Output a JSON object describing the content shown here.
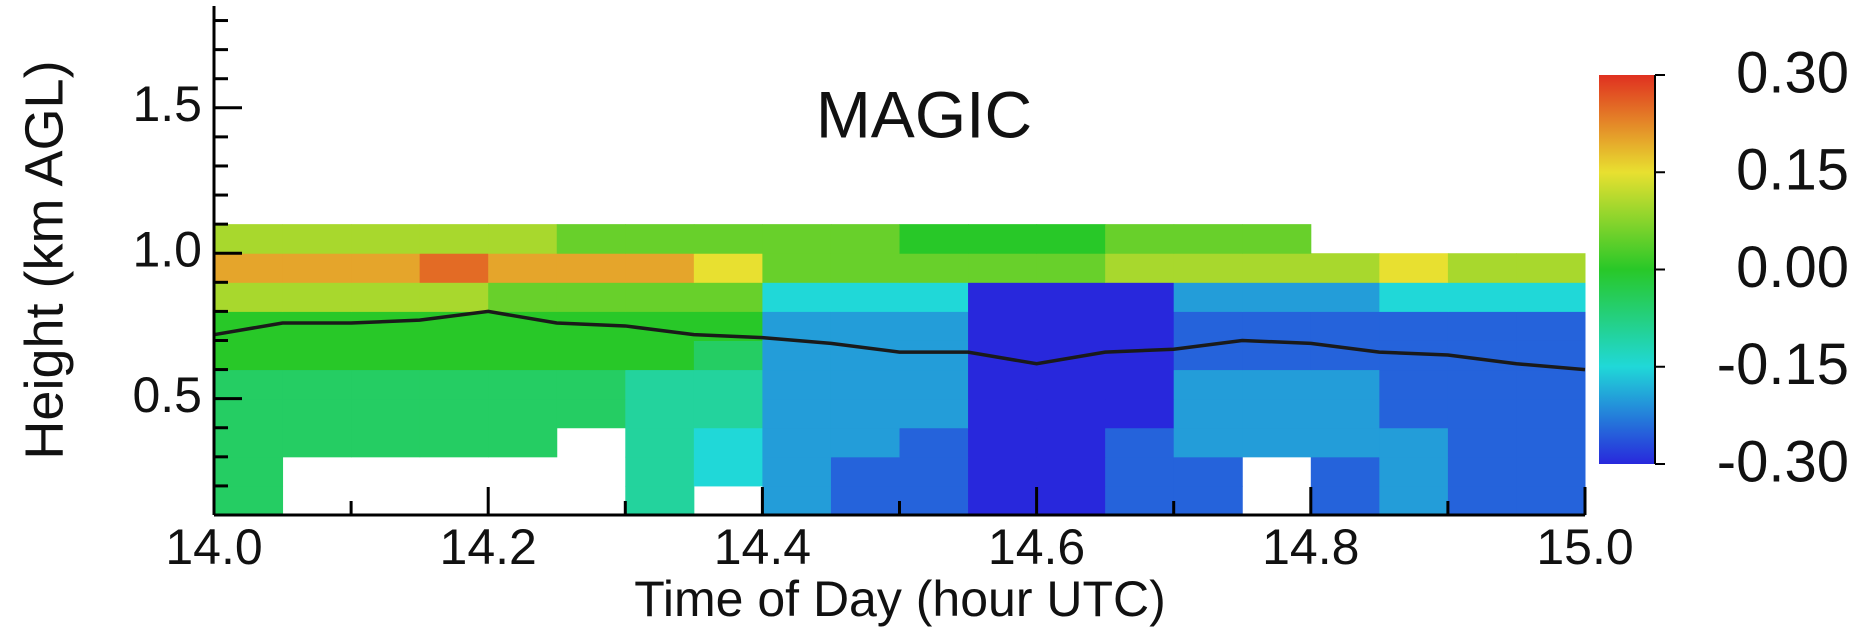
{
  "chart_data": {
    "type": "heatmap",
    "title": "MAGIC",
    "x_label": "Time of Day (hour UTC)",
    "y_label": "Height (km AGL)",
    "xlim": [
      14.0,
      15.0
    ],
    "ylim": [
      0.1,
      1.85
    ],
    "xticks": [
      {
        "value": 14.0,
        "label": "14.0"
      },
      14.2,
      14.4,
      14.6,
      14.8,
      {
        "value": 15.0,
        "label": "15.0"
      }
    ],
    "xminorticks": [
      14.1,
      14.3,
      14.5,
      14.7,
      14.9
    ],
    "yticks": [
      0.5,
      {
        "value": 1.0,
        "label": "1.0"
      },
      1.5
    ],
    "yminorticks": [
      0.2,
      0.3,
      0.4,
      0.6,
      0.7,
      0.8,
      0.9,
      1.1,
      1.2,
      1.3,
      1.4,
      1.6,
      1.7,
      1.8
    ],
    "zlim": [
      -0.3,
      0.3
    ],
    "zticks": [
      {
        "value": 0.3,
        "label": "0.30"
      },
      0.15,
      {
        "value": 0.0,
        "label": "0.00"
      },
      -0.15,
      {
        "value": -0.3,
        "label": "-0.30"
      }
    ],
    "colormap": [
      "#2828dc",
      "#20d8d8",
      "#28c828",
      "#e8e030",
      "#e03020"
    ],
    "xbins": [
      14.0,
      14.05,
      14.1,
      14.15,
      14.2,
      14.25,
      14.3,
      14.35,
      14.4,
      14.45,
      14.5,
      14.55,
      14.6,
      14.65,
      14.7,
      14.75,
      14.8,
      14.85,
      14.9,
      14.95,
      15.0
    ],
    "ybins": [
      0.1,
      0.2,
      0.3,
      0.4,
      0.5,
      0.6,
      0.7,
      0.8,
      0.9,
      1.0,
      1.1
    ],
    "z": [
      [
        -0.05,
        null,
        null,
        null,
        null,
        null,
        -0.1,
        null,
        -0.2,
        -0.25,
        -0.25,
        -0.3,
        -0.3,
        -0.25,
        -0.25,
        null,
        -0.25,
        -0.2,
        -0.25,
        -0.25
      ],
      [
        -0.05,
        null,
        null,
        null,
        null,
        null,
        -0.1,
        -0.15,
        -0.2,
        -0.25,
        -0.25,
        -0.3,
        -0.3,
        -0.25,
        -0.25,
        null,
        -0.25,
        -0.2,
        -0.25,
        -0.25
      ],
      [
        -0.05,
        -0.05,
        -0.05,
        -0.05,
        -0.05,
        null,
        -0.1,
        -0.15,
        -0.2,
        -0.2,
        -0.25,
        -0.3,
        -0.3,
        -0.25,
        -0.2,
        -0.2,
        -0.2,
        -0.2,
        -0.25,
        -0.25
      ],
      [
        -0.05,
        -0.05,
        -0.05,
        -0.05,
        -0.05,
        -0.05,
        -0.1,
        -0.1,
        -0.2,
        -0.2,
        -0.2,
        -0.3,
        -0.3,
        -0.3,
        -0.2,
        -0.2,
        -0.2,
        -0.25,
        -0.25,
        -0.25
      ],
      [
        -0.05,
        -0.05,
        -0.05,
        -0.05,
        -0.05,
        -0.05,
        -0.1,
        -0.1,
        -0.2,
        -0.2,
        -0.2,
        -0.3,
        -0.3,
        -0.3,
        -0.2,
        -0.2,
        -0.2,
        -0.25,
        -0.25,
        -0.25
      ],
      [
        0.0,
        0.0,
        0.0,
        0.0,
        0.0,
        0.0,
        0.0,
        -0.05,
        -0.2,
        -0.2,
        -0.2,
        -0.3,
        -0.3,
        -0.3,
        -0.25,
        -0.25,
        -0.25,
        -0.25,
        -0.25,
        -0.25
      ],
      [
        0.0,
        0.0,
        0.0,
        0.0,
        0.0,
        0.0,
        0.0,
        0.0,
        -0.2,
        -0.2,
        -0.2,
        -0.3,
        -0.3,
        -0.3,
        -0.25,
        -0.25,
        -0.25,
        -0.25,
        -0.25,
        -0.25
      ],
      [
        0.1,
        0.1,
        0.1,
        0.1,
        0.05,
        0.05,
        0.05,
        0.05,
        -0.15,
        -0.15,
        -0.15,
        -0.3,
        -0.3,
        -0.3,
        -0.2,
        -0.2,
        -0.2,
        -0.15,
        -0.15,
        -0.15
      ],
      [
        0.2,
        0.2,
        0.2,
        0.25,
        0.2,
        0.2,
        0.2,
        0.15,
        0.05,
        0.05,
        0.05,
        0.05,
        0.05,
        0.1,
        0.1,
        0.1,
        0.1,
        0.15,
        0.1,
        0.1
      ],
      [
        0.1,
        0.1,
        0.1,
        0.1,
        0.1,
        0.05,
        0.05,
        0.05,
        0.05,
        0.05,
        0.0,
        0.0,
        0.0,
        0.05,
        0.05,
        0.05,
        null,
        null,
        null,
        null
      ]
    ],
    "line": {
      "color": "#1a1a1a",
      "x": [
        14.0,
        14.05,
        14.1,
        14.15,
        14.2,
        14.25,
        14.3,
        14.35,
        14.4,
        14.45,
        14.5,
        14.55,
        14.6,
        14.65,
        14.7,
        14.75,
        14.8,
        14.85,
        14.9,
        14.95,
        15.0
      ],
      "values": [
        0.72,
        0.76,
        0.76,
        0.77,
        0.8,
        0.76,
        0.75,
        0.72,
        0.71,
        0.69,
        0.66,
        0.66,
        0.62,
        0.66,
        0.67,
        0.7,
        0.69,
        0.66,
        0.65,
        0.62,
        0.6
      ]
    }
  }
}
